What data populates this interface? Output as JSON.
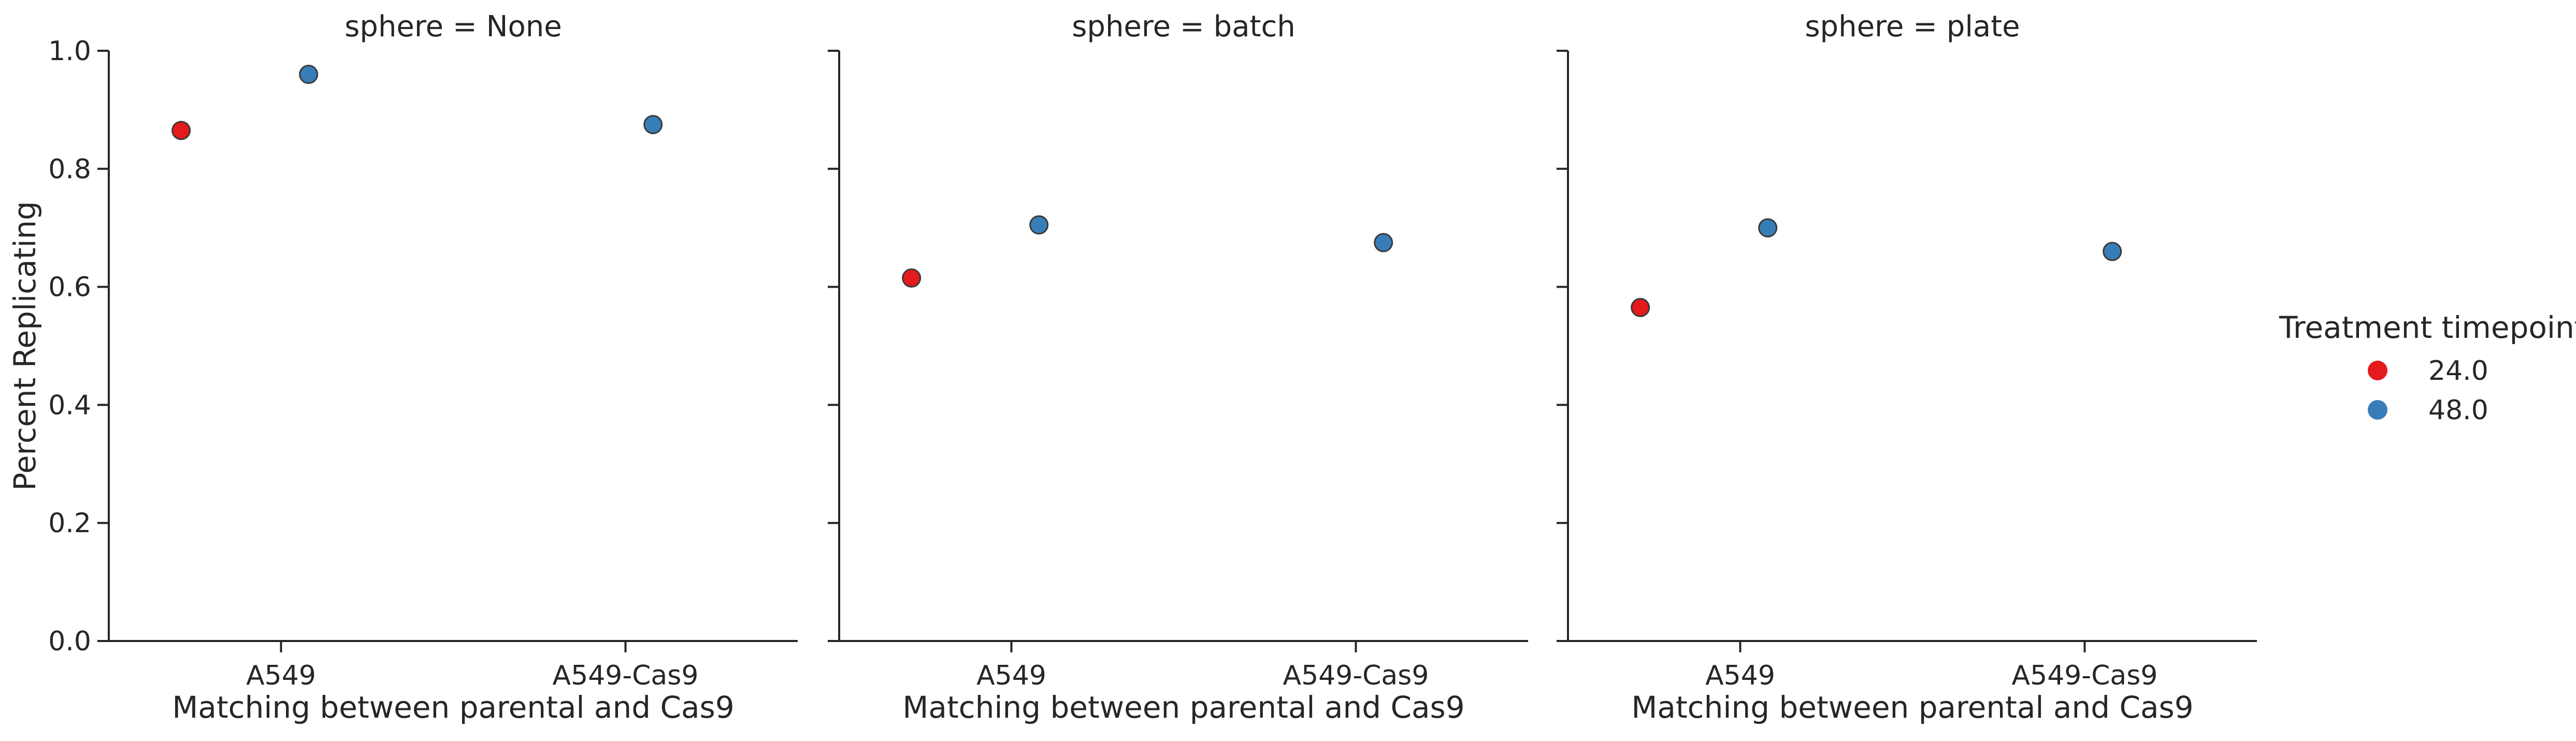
{
  "chart_data": {
    "type": "scatter",
    "facet_variable": "sphere",
    "facet_titles": [
      "sphere = None",
      "sphere = batch",
      "sphere = plate"
    ],
    "categories": [
      "A549",
      "A549-Cas9"
    ],
    "xlabel": "Matching between parental and Cas9",
    "ylabel": "Percent Replicating",
    "ylim": [
      0,
      1.0
    ],
    "yticks": [
      "0.0",
      "0.2",
      "0.4",
      "0.6",
      "0.8",
      "1.0"
    ],
    "grid": false,
    "legend": {
      "title": "Treatment timepoint",
      "placement": "right",
      "entries": [
        {
          "label": "24.0",
          "color": "#e41a1c"
        },
        {
          "label": "48.0",
          "color": "#377eb8"
        }
      ]
    },
    "panels": [
      {
        "sphere": "None",
        "points": [
          {
            "category": "A549",
            "timepoint": "24.0",
            "y": 0.865
          },
          {
            "category": "A549",
            "timepoint": "48.0",
            "y": 0.96
          },
          {
            "category": "A549-Cas9",
            "timepoint": "48.0",
            "y": 0.875
          }
        ]
      },
      {
        "sphere": "batch",
        "points": [
          {
            "category": "A549",
            "timepoint": "24.0",
            "y": 0.615
          },
          {
            "category": "A549",
            "timepoint": "48.0",
            "y": 0.705
          },
          {
            "category": "A549-Cas9",
            "timepoint": "48.0",
            "y": 0.675
          }
        ]
      },
      {
        "sphere": "plate",
        "points": [
          {
            "category": "A549",
            "timepoint": "24.0",
            "y": 0.565
          },
          {
            "category": "A549",
            "timepoint": "48.0",
            "y": 0.7
          },
          {
            "category": "A549-Cas9",
            "timepoint": "48.0",
            "y": 0.66
          }
        ]
      }
    ]
  }
}
